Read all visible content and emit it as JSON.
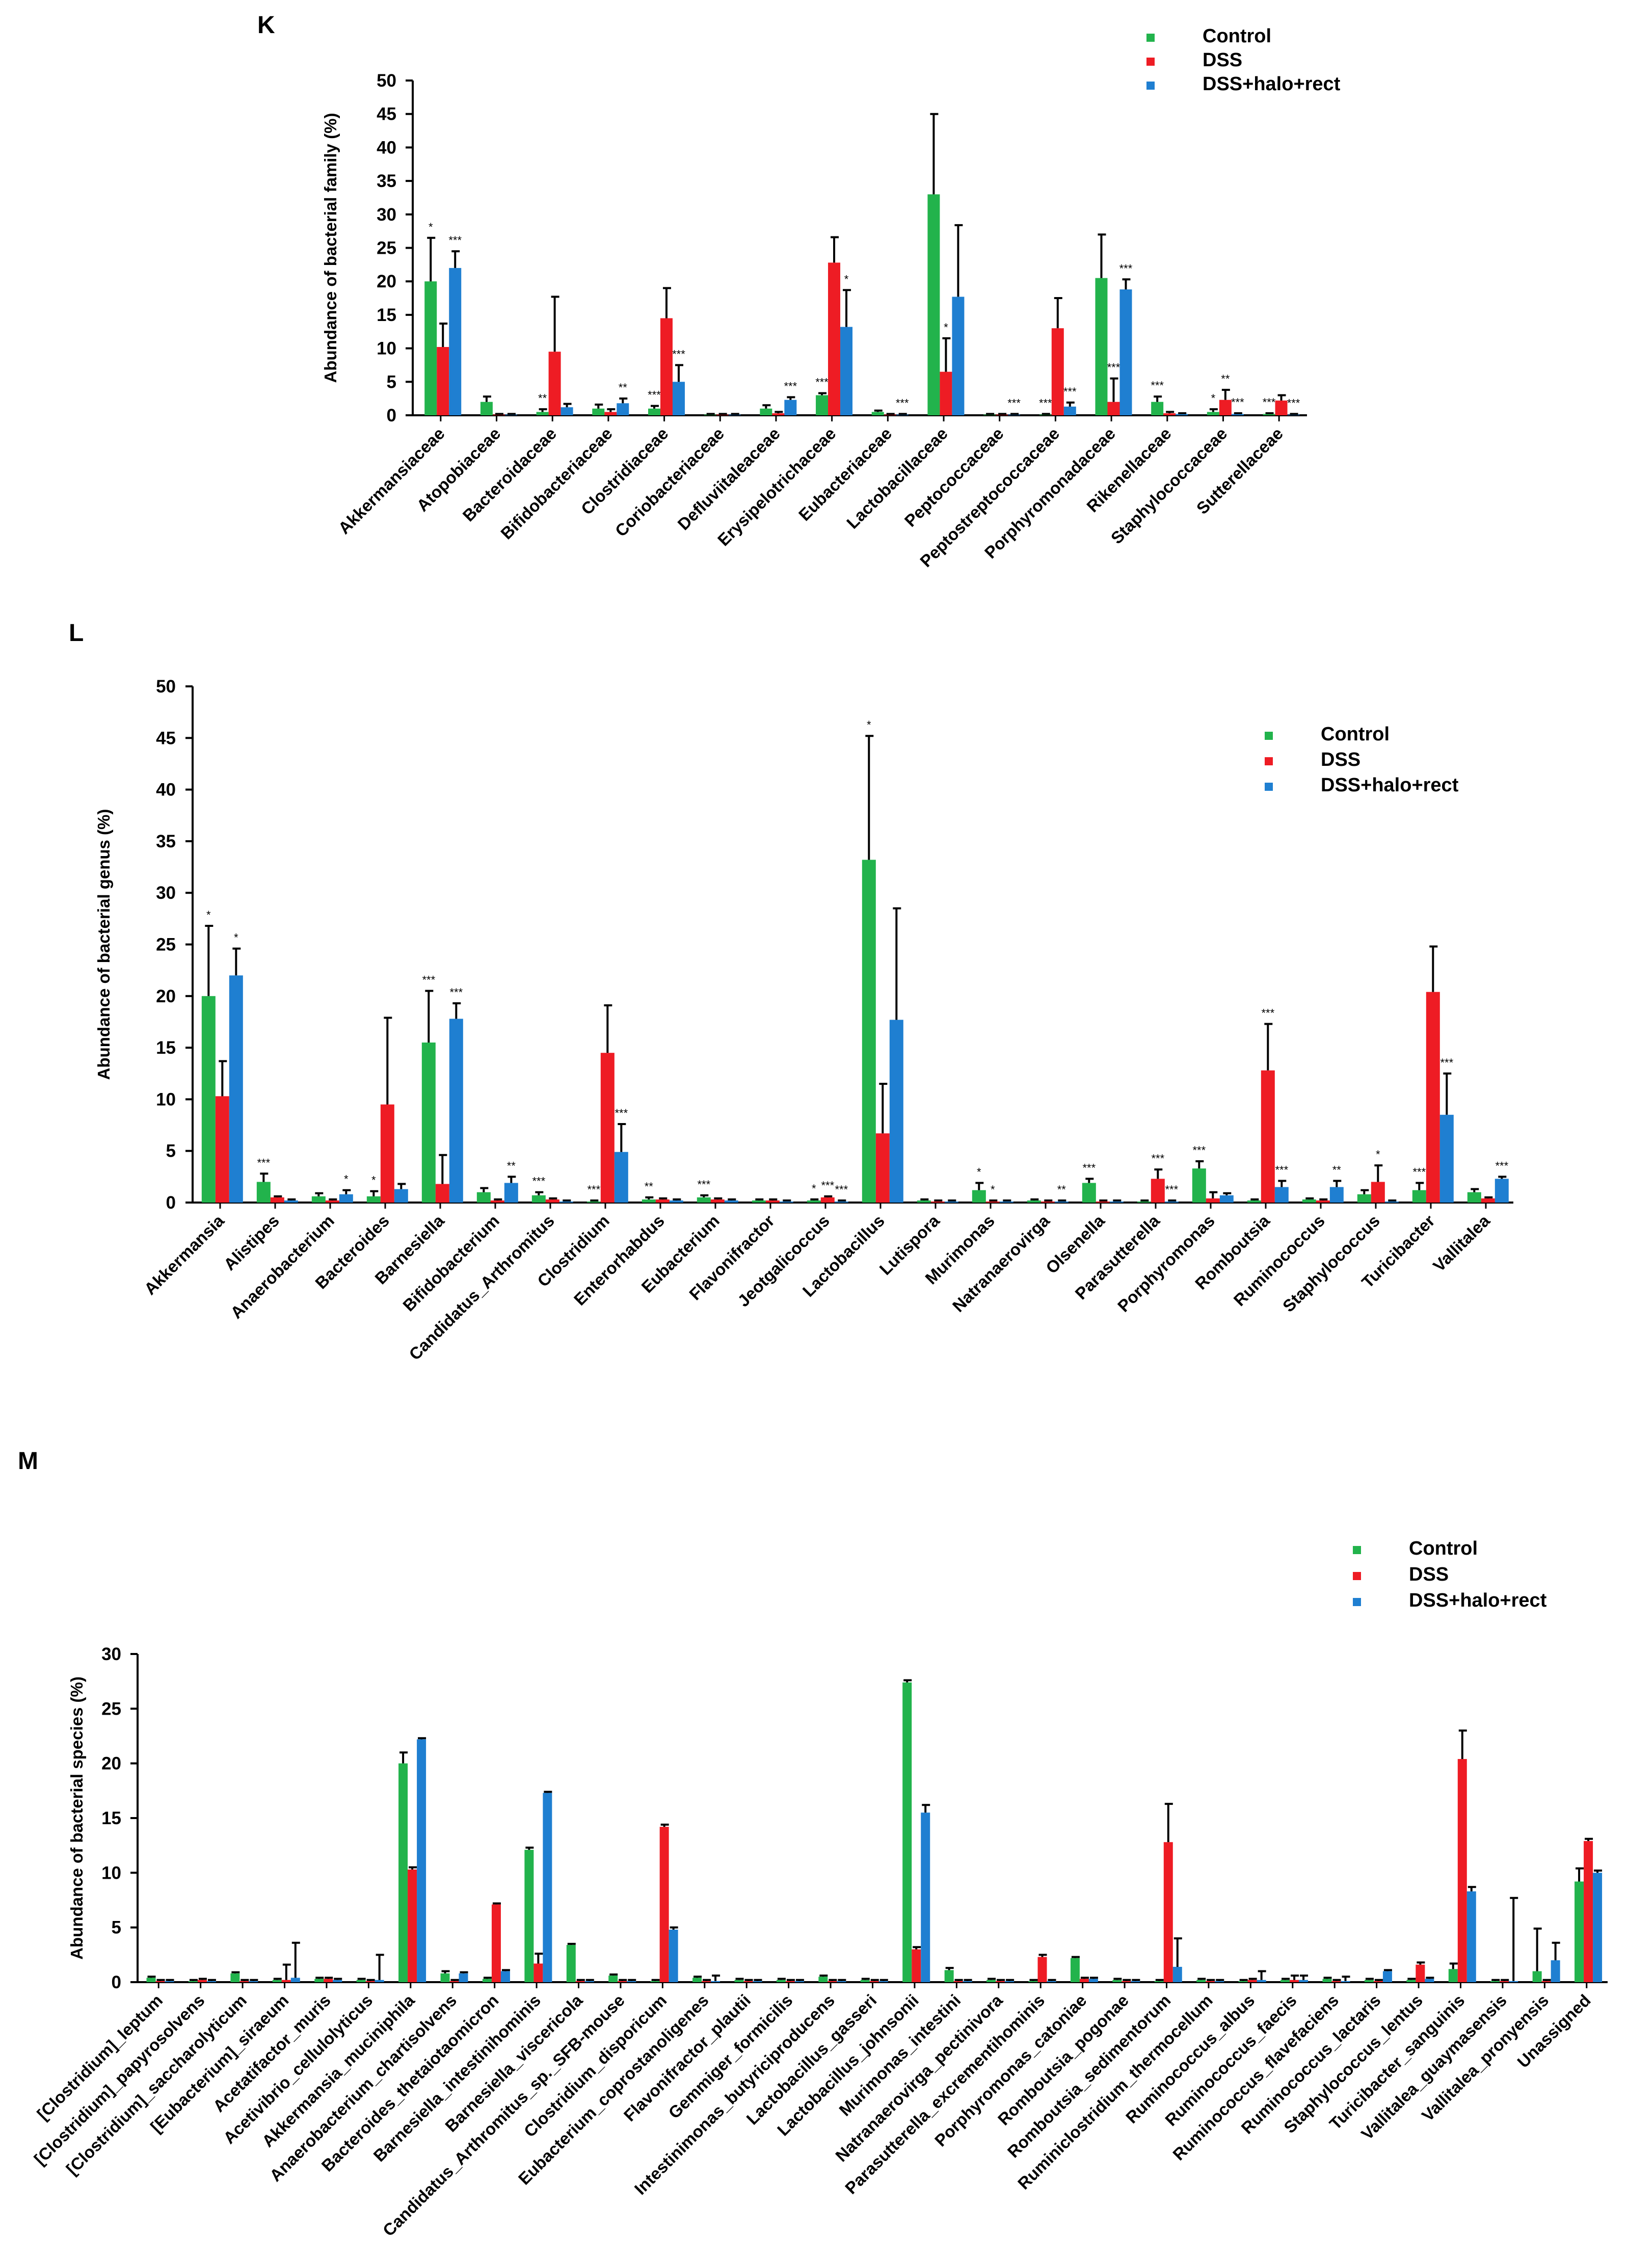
{
  "colors": {
    "control": "#22b34c",
    "dss": "#ee1c24",
    "dss_halo_rect": "#1f7fd1"
  },
  "chart_data": [
    {
      "id": "K",
      "type": "bar",
      "panel_label": "K",
      "ylabel": "Abundance of bacterial family (%)",
      "ylim": [
        0,
        50
      ],
      "yticks": [
        0,
        5,
        10,
        15,
        20,
        25,
        30,
        35,
        40,
        45,
        50
      ],
      "legend": [
        "Control",
        "DSS",
        "DSS+halo+rect"
      ],
      "legend_position": "top-right",
      "categories": [
        "Akkermansiaceae",
        "Atopobiaceae",
        "Bacteroidaceae",
        "Bifidobacteriaceae",
        "Clostridiaceae",
        "Coriobacteriaceae",
        "Defluviitaleaceae",
        "Erysipelotrichaceae",
        "Eubacteriaceae",
        "Lactobacillaceae",
        "Peptococcaceae",
        "Peptostreptococcaceae",
        "Porphyromonadaceae",
        "Rikenellaceae",
        "Staphylococcaceae",
        "Sutterellaceae"
      ],
      "series": [
        {
          "name": "Control",
          "values": [
            20,
            2,
            0.5,
            1,
            1,
            0.1,
            1,
            3,
            0.5,
            33,
            0.1,
            0.1,
            20.5,
            2,
            0.5,
            0.2
          ],
          "errors": [
            6.5,
            0.8,
            0.4,
            0.6,
            0.4,
            0.1,
            0.5,
            0.3,
            0.2,
            12,
            0.1,
            0.1,
            6.5,
            0.8,
            0.4,
            0.1
          ]
        },
        {
          "name": "DSS",
          "values": [
            10.2,
            0.1,
            9.5,
            0.5,
            14.5,
            0.1,
            0.3,
            22.8,
            0.1,
            6.5,
            0.1,
            13,
            2,
            0.3,
            2.3,
            2.2
          ],
          "errors": [
            3.5,
            0.1,
            8.2,
            0.4,
            4.5,
            0.1,
            0.2,
            3.8,
            0.1,
            5,
            0.1,
            4.5,
            3.5,
            0.2,
            1.5,
            0.8
          ]
        },
        {
          "name": "DSS+halo+rect",
          "values": [
            22,
            0.1,
            1.2,
            1.8,
            5,
            0.1,
            2.3,
            13.2,
            0.1,
            17.7,
            0.1,
            1.3,
            18.8,
            0.2,
            0.2,
            0.1
          ],
          "errors": [
            2.5,
            0.1,
            0.5,
            0.7,
            2.5,
            0.1,
            0.4,
            5.5,
            0.1,
            10.7,
            0.1,
            0.6,
            1.5,
            0.1,
            0.1,
            0.1
          ]
        }
      ],
      "annotations": [
        [
          "*",
          "",
          "***"
        ],
        [
          "",
          "",
          ""
        ],
        [
          "**",
          "",
          ""
        ],
        [
          "",
          "",
          "**"
        ],
        [
          "***",
          "",
          "***"
        ],
        [
          "",
          "",
          ""
        ],
        [
          "",
          "",
          "***"
        ],
        [
          "***",
          "",
          "*"
        ],
        [
          "",
          "",
          "***"
        ],
        [
          "",
          "*",
          ""
        ],
        [
          "",
          "",
          "***"
        ],
        [
          "***",
          "",
          "***"
        ],
        [
          "",
          "***",
          "***"
        ],
        [
          "***",
          "",
          ""
        ],
        [
          "*",
          "**",
          "***"
        ],
        [
          "***",
          "",
          "***"
        ]
      ]
    },
    {
      "id": "L",
      "type": "bar",
      "panel_label": "L",
      "ylabel": "Abundance of bacterial genus (%)",
      "ylim": [
        0,
        50
      ],
      "yticks": [
        0,
        5,
        10,
        15,
        20,
        25,
        30,
        35,
        40,
        45,
        50
      ],
      "legend": [
        "Control",
        "DSS",
        "DSS+halo+rect"
      ],
      "legend_position": "top-right",
      "categories": [
        "Akkermansia",
        "Alistipes",
        "Anaerobacterium",
        "Bacteroides",
        "Barnesiella",
        "Bifidobacterium",
        "Candidatus_Arthromitus",
        "Clostridium",
        "Enterorhabdus",
        "Eubacterium",
        "Flavonifractor",
        "Jeotgalicoccus",
        "Lactobacillus",
        "Lutispora",
        "Murimonas",
        "Natranaerovirga",
        "Olsenella",
        "Parasutterella",
        "Porphyromonas",
        "Romboutsia",
        "Ruminococcus",
        "Staphylococcus",
        "Turicibacter",
        "Vallitalea"
      ],
      "series": [
        {
          "name": "Control",
          "values": [
            20,
            2,
            0.6,
            0.6,
            15.5,
            1,
            0.7,
            0.1,
            0.3,
            0.5,
            0.2,
            0.2,
            33.2,
            0.2,
            1.2,
            0.2,
            1.9,
            0.1,
            3.3,
            0.2,
            0.3,
            0.8,
            1.2,
            1
          ],
          "errors": [
            6.8,
            0.8,
            0.3,
            0.5,
            5,
            0.4,
            0.3,
            0.1,
            0.2,
            0.2,
            0.1,
            0.1,
            12,
            0.1,
            0.7,
            0.1,
            0.4,
            0.1,
            0.7,
            0.1,
            0.1,
            0.4,
            0.7,
            0.3
          ]
        },
        {
          "name": "DSS",
          "values": [
            10.3,
            0.5,
            0.2,
            9.5,
            1.8,
            0.2,
            0.3,
            14.5,
            0.3,
            0.3,
            0.2,
            0.5,
            6.7,
            0.1,
            0.1,
            0.1,
            0.1,
            2.3,
            0.4,
            12.8,
            0.2,
            2,
            20.4,
            0.4
          ],
          "errors": [
            3.4,
            0.1,
            0.1,
            8.4,
            2.8,
            0.1,
            0.1,
            4.6,
            0.1,
            0.1,
            0.1,
            0.1,
            4.8,
            0.1,
            0.1,
            0.1,
            0.1,
            0.9,
            0.6,
            4.5,
            0.1,
            1.6,
            4.4,
            0.1
          ]
        },
        {
          "name": "DSS+halo+rect",
          "values": [
            22,
            0.2,
            0.8,
            1.3,
            17.8,
            1.9,
            0.1,
            4.9,
            0.2,
            0.2,
            0.1,
            0.1,
            17.7,
            0.1,
            0.1,
            0.1,
            0.1,
            0.1,
            0.7,
            1.5,
            1.5,
            0.1,
            8.5,
            2.3
          ],
          "errors": [
            2.6,
            0.1,
            0.4,
            0.5,
            1.5,
            0.6,
            0.1,
            2.7,
            0.1,
            0.1,
            0.1,
            0.1,
            10.8,
            0.1,
            0.1,
            0.1,
            0.1,
            0.1,
            0.2,
            0.6,
            0.6,
            0.1,
            4,
            0.2
          ]
        }
      ],
      "annotations": [
        [
          "*",
          "",
          "*"
        ],
        [
          "***",
          "",
          ""
        ],
        [
          "",
          "",
          "*"
        ],
        [
          "*",
          "",
          ""
        ],
        [
          "***",
          "",
          "***"
        ],
        [
          "",
          "",
          "**"
        ],
        [
          "***",
          "",
          ""
        ],
        [
          "***",
          "",
          "***"
        ],
        [
          "**",
          "",
          ""
        ],
        [
          "***",
          "",
          ""
        ],
        [
          "",
          "",
          ""
        ],
        [
          "*",
          "***",
          "***"
        ],
        [
          "*",
          "",
          ""
        ],
        [
          "",
          "",
          ""
        ],
        [
          "*",
          "*",
          ""
        ],
        [
          "",
          "",
          "**"
        ],
        [
          "***",
          "",
          ""
        ],
        [
          "",
          "***",
          "***"
        ],
        [
          "***",
          "",
          ""
        ],
        [
          "",
          "***",
          "***"
        ],
        [
          "",
          "",
          "**"
        ],
        [
          "",
          "*",
          ""
        ],
        [
          "***",
          "",
          "***"
        ],
        [
          "",
          "",
          "***"
        ]
      ]
    },
    {
      "id": "M",
      "type": "bar",
      "panel_label": "M",
      "ylabel": "Abundance of bacterial species (%)",
      "ylim": [
        0,
        30
      ],
      "yticks": [
        0,
        5,
        10,
        15,
        20,
        25,
        30
      ],
      "legend": [
        "Control",
        "DSS",
        "DSS+halo+rect"
      ],
      "legend_position": "top-right",
      "categories": [
        "[Clostridium]_leptum",
        "[Clostridium]_papyrosolvens",
        "[Clostridium]_saccharolyticum",
        "[Eubacterium]_siraeum",
        "Acetatifactor_muris",
        "Acetivibrio_cellulolyticus",
        "Akkermansia_muciniphila",
        "Anaerobacterium_chartisolvens",
        "Bacteroides_thetaiotaomicron",
        "Barnesiella_intestinihominis",
        "Barnesiella_viscericola",
        "Candidatus_Arthromitus_sp._SFB-mouse",
        "Clostridium_disporicum",
        "Eubacterium_coprostanoligenes",
        "Flavonifractor_plautii",
        "Gemmiger_formicilis",
        "Intestinimonas_butyriciproducens",
        "Lactobacillus_gasseri",
        "Lactobacillus_johnsonii",
        "Murimonas_intestini",
        "Natranaerovirga_pectinivora",
        "Parasutterella_excrementihominis",
        "Porphyromonas_catoniae",
        "Romboutsia_pogonae",
        "Romboutsia_sedimentorum",
        "Ruminiclostridium_thermocellum",
        "Ruminococcus_albus",
        "Ruminococcus_faecis",
        "Ruminococcus_flavefaciens",
        "Ruminococcus_lactaris",
        "Staphylococcus_lentus",
        "Turicibacter_sanguinis",
        "Vallitalea_guaymasensis",
        "Vallitalea_pronyensis",
        "Unassigned"
      ],
      "series": [
        {
          "name": "Control",
          "values": [
            0.4,
            0.1,
            0.8,
            0.2,
            0.3,
            0.2,
            20,
            0.8,
            0.3,
            12.1,
            3.4,
            0.6,
            0.1,
            0.4,
            0.2,
            0.2,
            0.5,
            0.2,
            27.4,
            1.1,
            0.2,
            0.1,
            2.2,
            0.2,
            0.1,
            0.2,
            0.1,
            0.2,
            0.3,
            0.2,
            0.2,
            1.2,
            0.1,
            1,
            9.2
          ],
          "errors": [
            0.1,
            0.1,
            0.1,
            0.1,
            0.1,
            0.1,
            1,
            0.2,
            0.1,
            0.2,
            0.1,
            0.1,
            0.1,
            0.1,
            0.1,
            0.1,
            0.1,
            0.1,
            0.2,
            0.2,
            0.1,
            0.1,
            0.1,
            0.1,
            0.1,
            0.1,
            0.1,
            0.1,
            0.1,
            0.1,
            0.1,
            0.5,
            0.1,
            3.9,
            1.2
          ]
        },
        {
          "name": "DSS",
          "values": [
            0.1,
            0.2,
            0.1,
            0.2,
            0.3,
            0.1,
            10.3,
            0.1,
            7.1,
            1.7,
            0.1,
            0.1,
            14.2,
            0.1,
            0.1,
            0.1,
            0.1,
            0.1,
            3,
            0.1,
            0.1,
            2.3,
            0.3,
            0.1,
            12.8,
            0.1,
            0.2,
            0.2,
            0.1,
            0.1,
            1.6,
            20.4,
            0.1,
            0.1,
            12.9
          ],
          "errors": [
            0.1,
            0.1,
            0.1,
            1.4,
            0.1,
            0.1,
            0.2,
            0.1,
            0.1,
            0.9,
            0.1,
            0.1,
            0.2,
            0.1,
            0.1,
            0.1,
            0.1,
            0.1,
            0.2,
            0.1,
            0.1,
            0.2,
            0.1,
            0.1,
            3.5,
            0.1,
            0.1,
            0.4,
            0.1,
            0.1,
            0.2,
            2.6,
            0.1,
            0.1,
            0.2
          ]
        },
        {
          "name": "DSS+halo+rect",
          "values": [
            0.1,
            0.1,
            0.1,
            0.4,
            0.2,
            0.2,
            22.2,
            0.8,
            1,
            17.3,
            0.1,
            0.1,
            4.8,
            0.1,
            0.1,
            0.1,
            0.1,
            0.1,
            15.5,
            0.1,
            0.1,
            0.1,
            0.3,
            0.1,
            1.4,
            0.1,
            0.2,
            0.2,
            0.1,
            1,
            0.3,
            8.3,
            0.1,
            2,
            10
          ],
          "errors": [
            0.1,
            0.1,
            0.1,
            3.2,
            0.1,
            2.3,
            0.1,
            0.1,
            0.1,
            0.1,
            0.1,
            0.1,
            0.2,
            0.5,
            0.1,
            0.1,
            0.1,
            0.1,
            0.7,
            0.1,
            0.1,
            0.1,
            0.1,
            0.1,
            2.6,
            0.1,
            0.8,
            0.4,
            0.4,
            0.1,
            0.1,
            0.4,
            7.6,
            1.6,
            0.2
          ]
        }
      ]
    }
  ]
}
